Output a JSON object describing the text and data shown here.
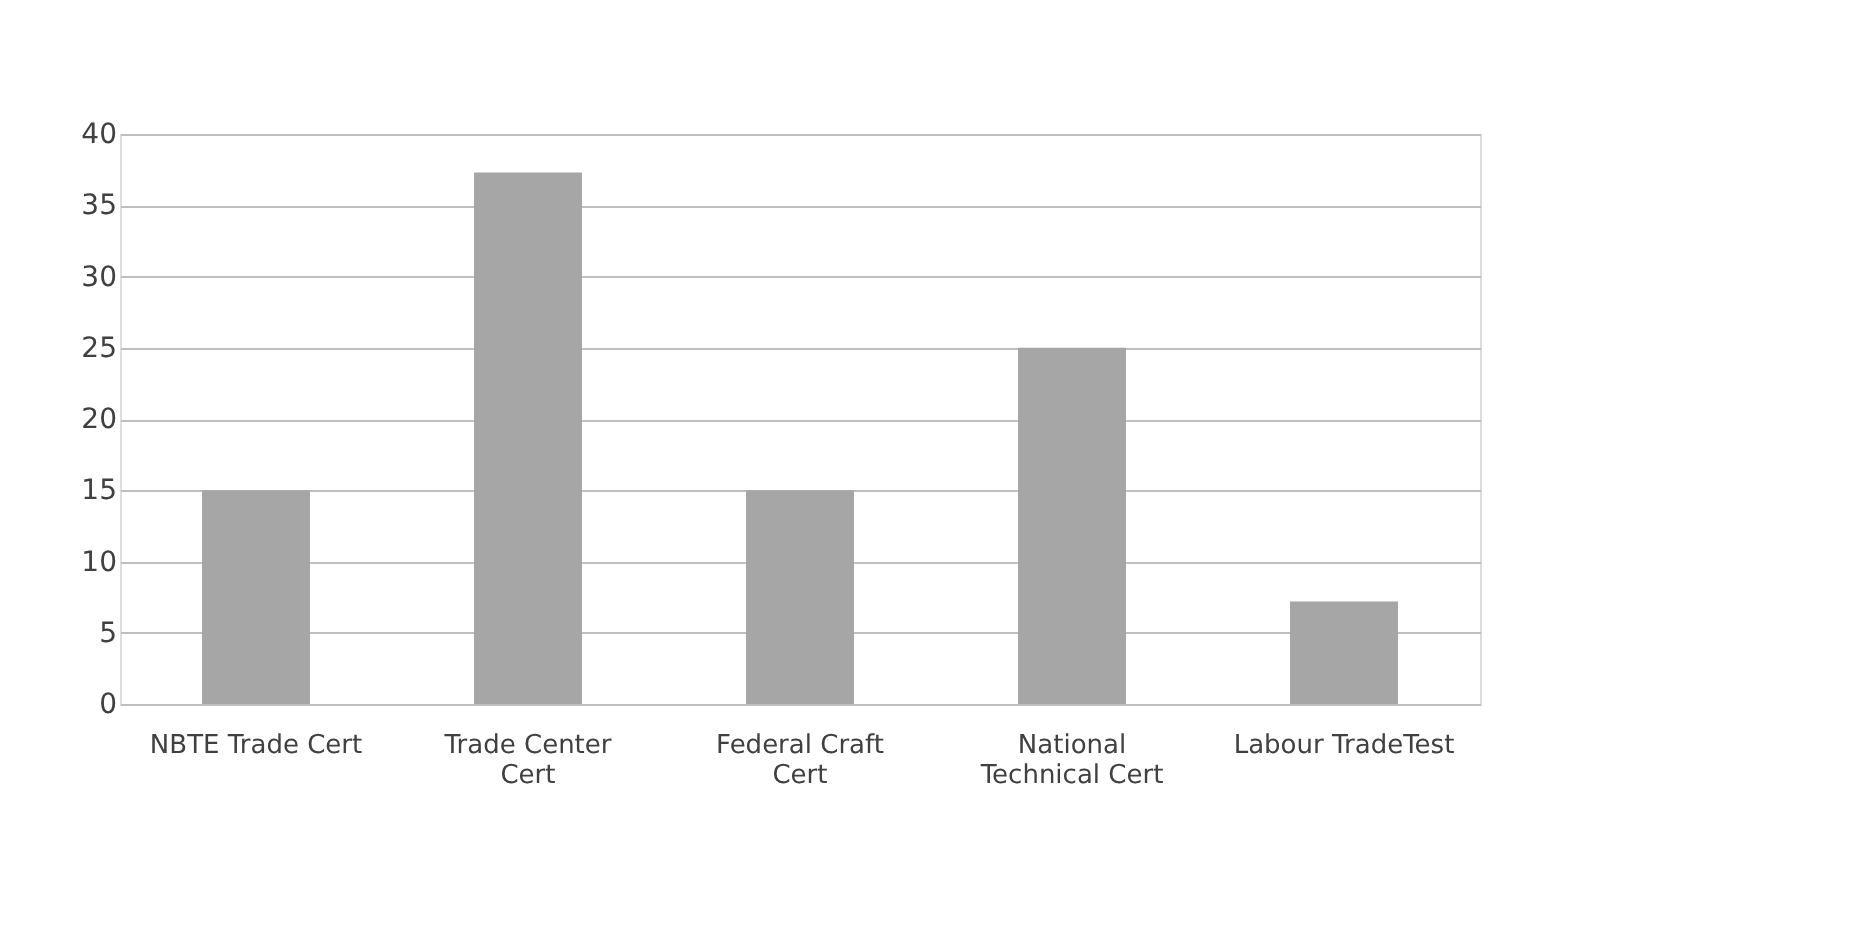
{
  "chart_data": {
    "type": "bar",
    "categories": [
      "NBTE Trade Cert",
      "Trade Center Cert",
      "Federal Craft Cert",
      "National Technical Cert",
      "Labour TradeTest"
    ],
    "values": [
      15,
      37.3,
      15,
      25,
      7.2
    ],
    "color": "#a6a6a6",
    "ylim": [
      0,
      40
    ],
    "yticks": [
      0,
      5,
      10,
      15,
      20,
      25,
      30,
      35,
      40
    ],
    "grid": "y"
  }
}
